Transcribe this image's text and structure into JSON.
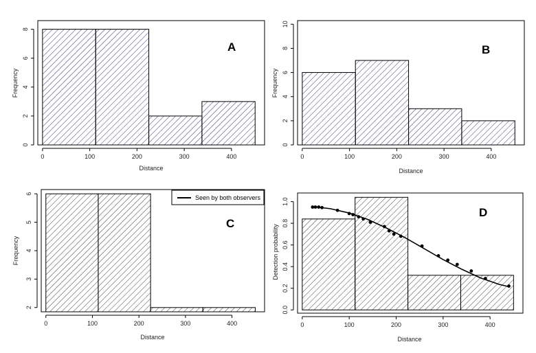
{
  "chart_data": [
    {
      "type": "bar",
      "panel_label": "A",
      "bins": [
        [
          0,
          112.5
        ],
        [
          112.5,
          225
        ],
        [
          225,
          337.5
        ],
        [
          337.5,
          450
        ]
      ],
      "values": [
        8,
        8,
        2,
        3
      ],
      "xlabel": "Distance",
      "ylabel": "Frequency",
      "xlim": [
        -10,
        470
      ],
      "ylim": [
        0,
        8.6
      ],
      "xticks": [
        0,
        100,
        200,
        300,
        400
      ],
      "yticks": [
        0,
        2,
        4,
        6,
        8
      ],
      "bar_fill": "hatched",
      "hatch_color": "#3a3a78",
      "legend": null
    },
    {
      "type": "bar",
      "panel_label": "B",
      "bins": [
        [
          0,
          112.5
        ],
        [
          112.5,
          225
        ],
        [
          225,
          337.5
        ],
        [
          337.5,
          450
        ]
      ],
      "values": [
        6,
        7,
        3,
        2
      ],
      "xlabel": "Distance",
      "ylabel": "Frequency",
      "xlim": [
        -10,
        470
      ],
      "ylim": [
        0,
        10.3
      ],
      "xticks": [
        0,
        100,
        200,
        300,
        400
      ],
      "yticks": [
        0,
        2,
        4,
        6,
        8,
        10
      ],
      "bar_fill": "hatched",
      "hatch_color": "#3a3a78",
      "legend": null
    },
    {
      "type": "bar",
      "panel_label": "C",
      "bins": [
        [
          0,
          112.5
        ],
        [
          112.5,
          225
        ],
        [
          225,
          337.5
        ],
        [
          337.5,
          450
        ]
      ],
      "values": [
        6,
        6,
        2,
        2
      ],
      "xlabel": "Distance",
      "ylabel": "Frequency",
      "xlim": [
        -10,
        470
      ],
      "ylim": [
        1.85,
        6.15
      ],
      "xticks": [
        0,
        100,
        200,
        300,
        400
      ],
      "yticks": [
        2,
        3,
        4,
        5,
        6
      ],
      "bar_fill": "hatched",
      "hatch_color": "#444444",
      "legend": {
        "entries": [
          "Seen by both observers"
        ],
        "position": "top-right"
      }
    },
    {
      "type": "bar",
      "panel_label": "D",
      "bins": [
        [
          0,
          112.5
        ],
        [
          112.5,
          225
        ],
        [
          225,
          337.5
        ],
        [
          337.5,
          450
        ]
      ],
      "values": [
        0.84,
        1.04,
        0.32,
        0.32
      ],
      "xlabel": "Distance",
      "ylabel": "Detection probability",
      "xlim": [
        -10,
        470
      ],
      "ylim": [
        -0.03,
        1.08
      ],
      "xticks": [
        0,
        100,
        200,
        300,
        400
      ],
      "yticks": [
        0.0,
        0.2,
        0.4,
        0.6,
        0.8,
        1.0
      ],
      "ytick_labels": [
        "0.0",
        "0.2",
        "0.4",
        "0.6",
        "0.8",
        "1.0"
      ],
      "bar_fill": "hatched",
      "hatch_color": "#444444",
      "curve": {
        "x": [
          20,
          60,
          100,
          140,
          180,
          220,
          260,
          300,
          340,
          380,
          420,
          440
        ],
        "y": [
          0.955,
          0.935,
          0.895,
          0.835,
          0.755,
          0.665,
          0.565,
          0.465,
          0.375,
          0.295,
          0.235,
          0.215
        ]
      },
      "points": {
        "x": [
          22,
          28,
          35,
          42,
          75,
          100,
          108,
          120,
          130,
          145,
          175,
          185,
          195,
          210,
          255,
          290,
          310,
          330,
          360,
          390,
          440
        ],
        "y": [
          0.95,
          0.95,
          0.95,
          0.945,
          0.92,
          0.89,
          0.88,
          0.86,
          0.84,
          0.81,
          0.77,
          0.73,
          0.7,
          0.68,
          0.59,
          0.5,
          0.46,
          0.42,
          0.36,
          0.29,
          0.22
        ]
      },
      "legend": null
    }
  ]
}
